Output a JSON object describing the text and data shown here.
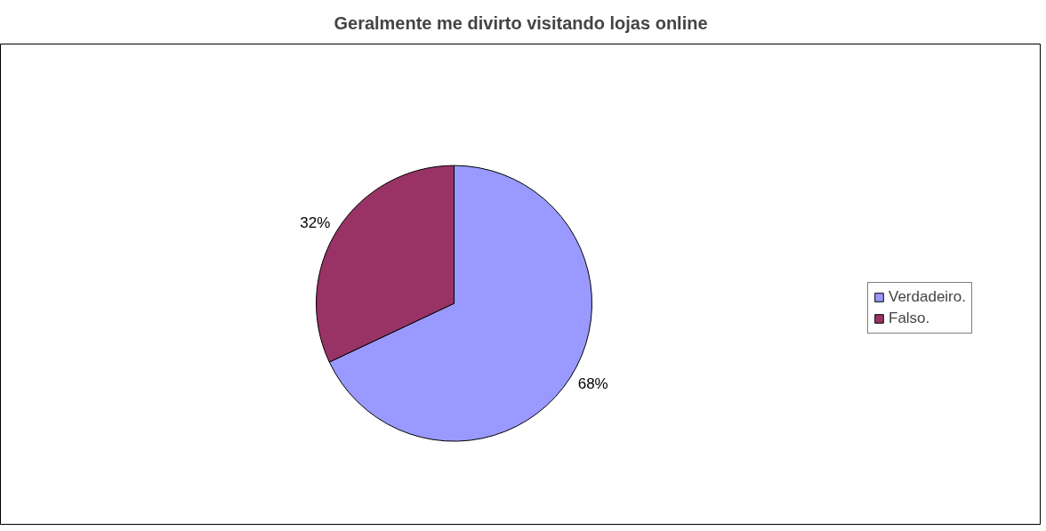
{
  "chart_data": {
    "type": "pie",
    "title": "Geralmente me divirto visitando lojas online",
    "categories": [
      "Verdadeiro.",
      "Falso."
    ],
    "values": [
      68,
      32
    ],
    "colors": [
      "#9999ff",
      "#993366"
    ],
    "value_labels": [
      "68%",
      "32%"
    ],
    "legend": "right"
  }
}
